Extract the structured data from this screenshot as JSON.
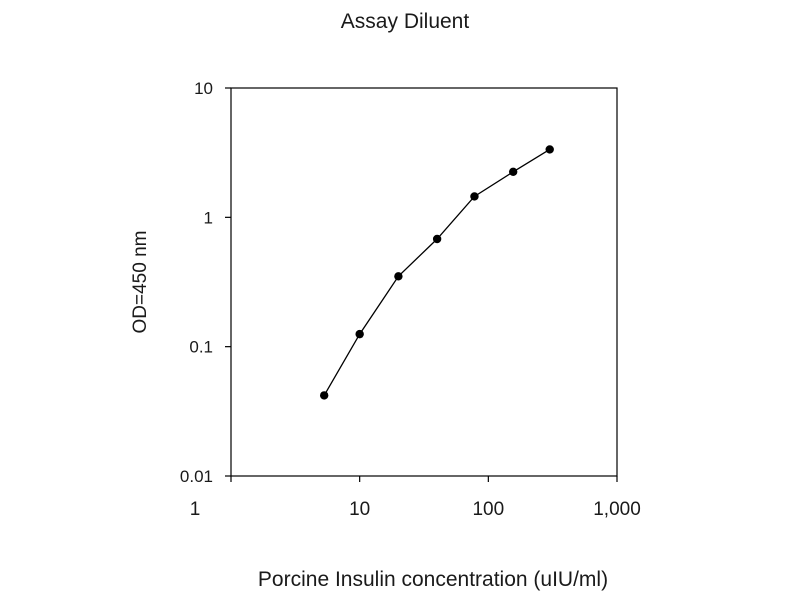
{
  "chart_data": {
    "type": "line",
    "title": "Assay Diluent",
    "xlabel": "Porcine Insulin concentration (uIU/ml)",
    "ylabel": "OD=450 nm",
    "x_scale": "log",
    "y_scale": "log",
    "xlim": [
      1,
      1000
    ],
    "ylim": [
      0.01,
      10
    ],
    "x_ticks": [
      1,
      10,
      100,
      1000
    ],
    "x_tick_labels": [
      "1",
      "10",
      "100",
      "1,000"
    ],
    "y_ticks": [
      0.01,
      0.1,
      1,
      10
    ],
    "y_tick_labels": [
      "0.01",
      "0.1",
      "1",
      "10"
    ],
    "grid": false,
    "legend": "none",
    "series": [
      {
        "x": [
          5.3,
          10,
          20,
          40,
          78,
          156,
          300
        ],
        "y": [
          0.042,
          0.125,
          0.35,
          0.68,
          1.45,
          2.25,
          3.35
        ],
        "color": "#000000",
        "marker": "circle"
      }
    ]
  }
}
